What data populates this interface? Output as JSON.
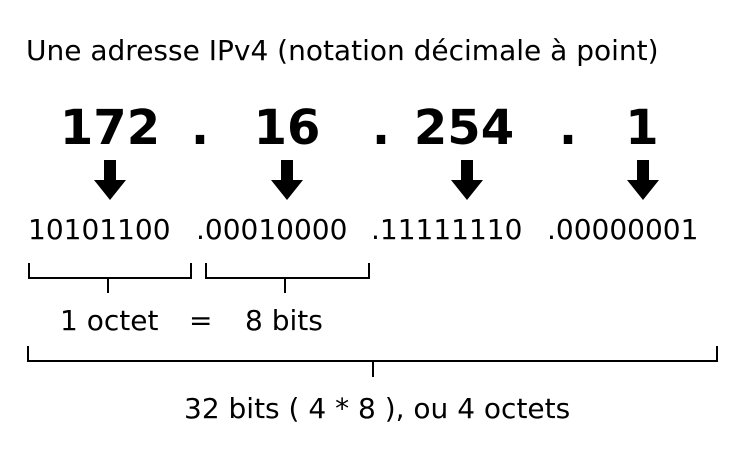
{
  "title": "Une adresse IPv4 (notation décimale à point)",
  "decimal": {
    "octets": [
      "172",
      "16",
      "254",
      "1"
    ],
    "separator": "."
  },
  "binary": {
    "octet1": "10101100",
    "octet2": ".00010000",
    "octet3": ".11111110",
    "octet4": ".00000001"
  },
  "octet_note": {
    "left": "1 octet",
    "equals": "=",
    "right": "8 bits"
  },
  "total_note": "32 bits ( 4 * 8 ), ou 4 octets",
  "icons": {
    "arrow": "arrow-down-icon",
    "bracket": "bracket-icon"
  },
  "colors": {
    "foreground": "#000000",
    "background": "#ffffff"
  }
}
